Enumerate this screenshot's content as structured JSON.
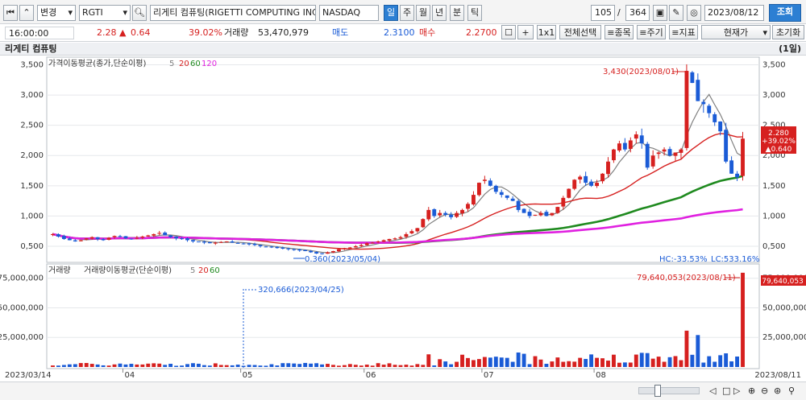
{
  "toolbar": {
    "mode_label": "변경",
    "ticker": "RGTI",
    "company_name": "리게티 컴퓨팅(RIGETTI COMPUTING INC)",
    "market": "NASDAQ",
    "periods": [
      "일",
      "주",
      "월",
      "년",
      "분",
      "틱"
    ],
    "active_period": "일",
    "page_current": "105",
    "page_sep": "/",
    "page_total": "364",
    "date": "2023/08/12",
    "query_label": "조회"
  },
  "quote": {
    "time": "16:00:00",
    "price": "2.28",
    "change_arrow": "▲",
    "change": "0.64",
    "change_pct": "39.02%",
    "volume_label": "거래량",
    "volume": "53,470,979",
    "ask_label": "매도",
    "ask": "2.3100",
    "bid_label": "매수",
    "bid": "2.2700",
    "plus_label": "+",
    "one_by_one": "1x1",
    "select_all": "전체선택",
    "item_btn": "≡종목",
    "period_btn": "≡주기",
    "indicator_btn": "≡지표",
    "price_type": "현재가",
    "reset": "초기화"
  },
  "chart_title": "리게티 컴퓨팅",
  "chart_unit": "(1일)",
  "price_panel": {
    "legend_label": "가격이동평균(종가,단순이평)",
    "ma_periods": [
      "5",
      "20",
      "60",
      "120"
    ],
    "ma_colors": [
      "#7f7f7f",
      "#d6201f",
      "#1f8a1f",
      "#e020e0"
    ],
    "high_annotation": "3,430(2023/08/01)",
    "low_annotation": "0.360(2023/05/04)",
    "hc_text": "HC:-33.53%",
    "lc_text": "LC:533.16%",
    "last_price": "2.280",
    "last_pct": "+39.02%",
    "last_change": "▲0.640",
    "y_ticks": [
      "3,500",
      "3,000",
      "2,500",
      "2,000",
      "1,500",
      "1,000",
      "0,500"
    ]
  },
  "volume_panel": {
    "legend_vol": "거래량",
    "legend_label": "거래량이동평균(단순이평)",
    "ma_periods": [
      "5",
      "20",
      "60"
    ],
    "high_annotation": "79,640,053(2023/08/11)",
    "low_annotation": "320,666(2023/04/25)",
    "last_volume": "79,640,053",
    "y_ticks": [
      "75,000,000",
      "50,000,000",
      "25,000,000"
    ]
  },
  "x_axis": {
    "start_label": "2023/03/14",
    "end_label": "2023/08/11",
    "month_labels": [
      "04",
      "05",
      "06",
      "07",
      "08"
    ]
  },
  "chart_data": {
    "type": "candlestick",
    "dates_range": [
      "2023/03/14",
      "2023/08/11"
    ],
    "close_approx": [
      0.7,
      0.66,
      0.62,
      0.6,
      0.58,
      0.6,
      0.63,
      0.65,
      0.62,
      0.6,
      0.64,
      0.67,
      0.66,
      0.63,
      0.62,
      0.64,
      0.66,
      0.68,
      0.7,
      0.72,
      0.68,
      0.65,
      0.63,
      0.62,
      0.6,
      0.58,
      0.57,
      0.56,
      0.55,
      0.56,
      0.57,
      0.58,
      0.56,
      0.55,
      0.54,
      0.53,
      0.52,
      0.5,
      0.49,
      0.48,
      0.47,
      0.46,
      0.45,
      0.44,
      0.43,
      0.42,
      0.4,
      0.38,
      0.37,
      0.4,
      0.42,
      0.45,
      0.47,
      0.48,
      0.5,
      0.52,
      0.55,
      0.56,
      0.58,
      0.6,
      0.62,
      0.63,
      0.65,
      0.7,
      0.75,
      0.8,
      0.95,
      1.1,
      1.0,
      1.05,
      1.02,
      0.98,
      1.05,
      1.1,
      1.2,
      1.35,
      1.55,
      1.6,
      1.5,
      1.4,
      1.35,
      1.3,
      1.25,
      1.1,
      1.05,
      1.0,
      1.02,
      1.05,
      1.0,
      1.05,
      1.15,
      1.3,
      1.45,
      1.6,
      1.65,
      1.55,
      1.5,
      1.55,
      1.7,
      1.9,
      2.1,
      2.2,
      2.1,
      2.25,
      2.35,
      2.2,
      1.8,
      2.0,
      2.05,
      2.1,
      2.0,
      2.05,
      2.1,
      3.4,
      3.2,
      2.9,
      2.85,
      2.7,
      2.55,
      2.4,
      1.9,
      1.7,
      1.64,
      2.28
    ],
    "y_range": [
      0.3,
      3.6
    ],
    "volume_range": [
      0,
      85000000
    ],
    "last_volume": 79640053
  }
}
